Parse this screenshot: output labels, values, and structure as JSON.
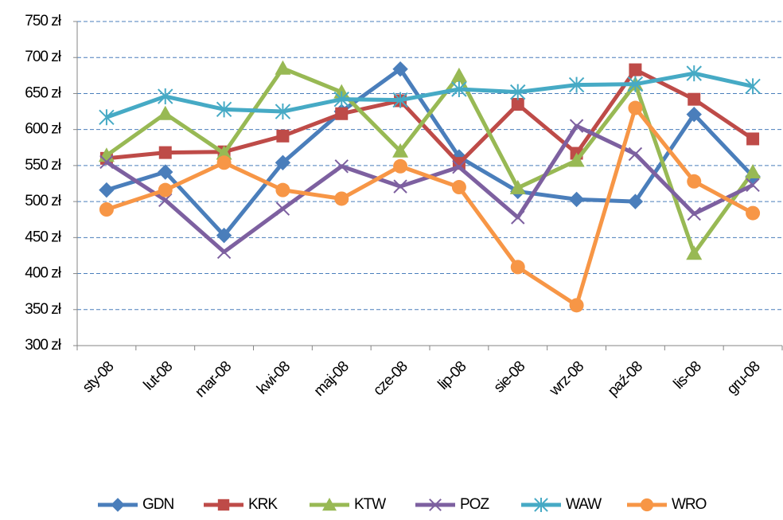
{
  "chart_data": {
    "type": "line",
    "categories": [
      "sty-08",
      "lut-08",
      "mar-08",
      "kwi-08",
      "maj-08",
      "cze-08",
      "lip-08",
      "sie-08",
      "wrz-08",
      "paź-08",
      "lis-08",
      "gru-08"
    ],
    "ylim": [
      300,
      750
    ],
    "yticks": [
      {
        "value": 300,
        "label": "300 zł"
      },
      {
        "value": 350,
        "label": "350 zł"
      },
      {
        "value": 400,
        "label": "400 zł"
      },
      {
        "value": 450,
        "label": "450 zł"
      },
      {
        "value": 500,
        "label": "500 zł"
      },
      {
        "value": 550,
        "label": "550 zł"
      },
      {
        "value": 600,
        "label": "600 zł"
      },
      {
        "value": 650,
        "label": "650 zł"
      },
      {
        "value": 700,
        "label": "700 zł"
      },
      {
        "value": 750,
        "label": "750 zł"
      }
    ],
    "grid": true,
    "legend": "bottom",
    "series": [
      {
        "name": "GDN",
        "color": "#4a7ebb",
        "marker": "diamond",
        "values": [
          516,
          541,
          453,
          554,
          625,
          684,
          562,
          514,
          503,
          500,
          621,
          535
        ]
      },
      {
        "name": "KRK",
        "color": "#be4b48",
        "marker": "square",
        "values": [
          560,
          568,
          569,
          591,
          622,
          640,
          553,
          635,
          567,
          683,
          642,
          587
        ]
      },
      {
        "name": "KTW",
        "color": "#98b954",
        "marker": "triangle",
        "values": [
          564,
          622,
          567,
          685,
          652,
          570,
          675,
          519,
          557,
          663,
          428,
          541
        ]
      },
      {
        "name": "POZ",
        "color": "#7d60a0",
        "marker": "x",
        "values": [
          555,
          502,
          430,
          490,
          549,
          521,
          548,
          478,
          605,
          566,
          483,
          523
        ]
      },
      {
        "name": "WAW",
        "color": "#46aac5",
        "marker": "star",
        "values": [
          617,
          646,
          628,
          625,
          642,
          641,
          656,
          652,
          662,
          663,
          678,
          660
        ]
      },
      {
        "name": "WRO",
        "color": "#f79646",
        "marker": "circle",
        "values": [
          489,
          516,
          554,
          516,
          504,
          549,
          520,
          409,
          356,
          630,
          528,
          484
        ]
      }
    ]
  }
}
